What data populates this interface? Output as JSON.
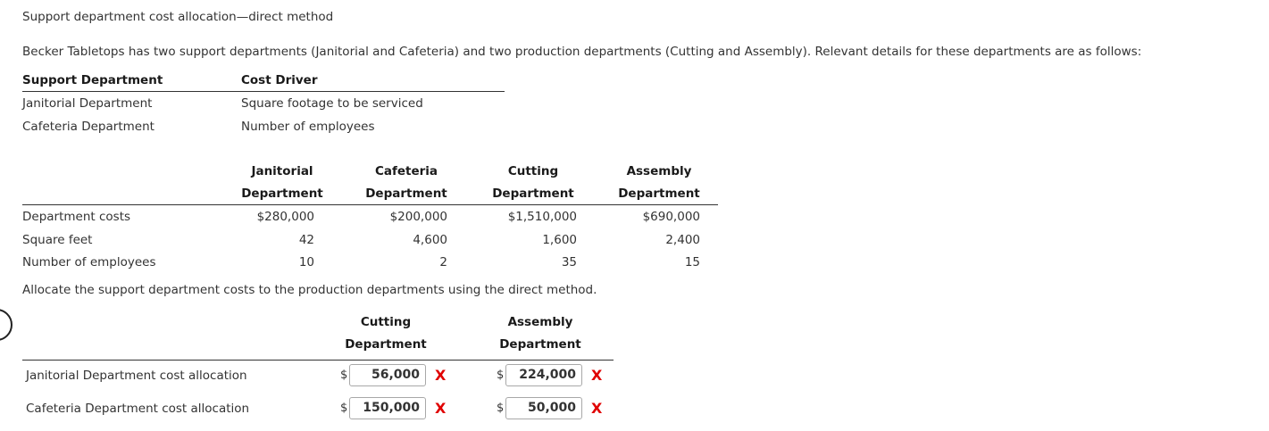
{
  "title": "Support department cost allocation—direct method",
  "intro": "Becker Tabletops has two support departments (Janitorial and Cafeteria) and two production departments (Cutting and Assembly). Relevant details for these departments are as follows:",
  "driver_table": {
    "headers": [
      "Support Department",
      "Cost Driver"
    ],
    "rows": [
      [
        "Janitorial Department",
        "Square footage to be serviced"
      ],
      [
        "Cafeteria Department",
        "Number of employees"
      ]
    ]
  },
  "data_table": {
    "headers": [
      [
        "Janitorial",
        "Department"
      ],
      [
        "Cafeteria",
        "Department"
      ],
      [
        "Cutting",
        "Department"
      ],
      [
        "Assembly",
        "Department"
      ]
    ],
    "rows": [
      {
        "label": "Department costs",
        "values": [
          "$280,000",
          "$200,000",
          "$1,510,000",
          "$690,000"
        ]
      },
      {
        "label": "Square feet",
        "values": [
          "42",
          "4,600",
          "1,600",
          "2,400"
        ]
      },
      {
        "label": "Number of employees",
        "values": [
          "10",
          "2",
          "35",
          "15"
        ]
      }
    ]
  },
  "instruction": "Allocate the support department costs to the production departments using the direct method.",
  "answer_table": {
    "headers": [
      [
        "Cutting",
        "Department"
      ],
      [
        "Assembly",
        "Department"
      ]
    ],
    "currency": "$",
    "rows": [
      {
        "label": "Janitorial Department cost allocation",
        "cutting": "56,000",
        "assembly": "224,000"
      },
      {
        "label": "Cafeteria Department cost allocation",
        "cutting": "150,000",
        "assembly": "50,000"
      }
    ],
    "incorrect_mark": "X",
    "incorrect_color": "#e00000"
  }
}
